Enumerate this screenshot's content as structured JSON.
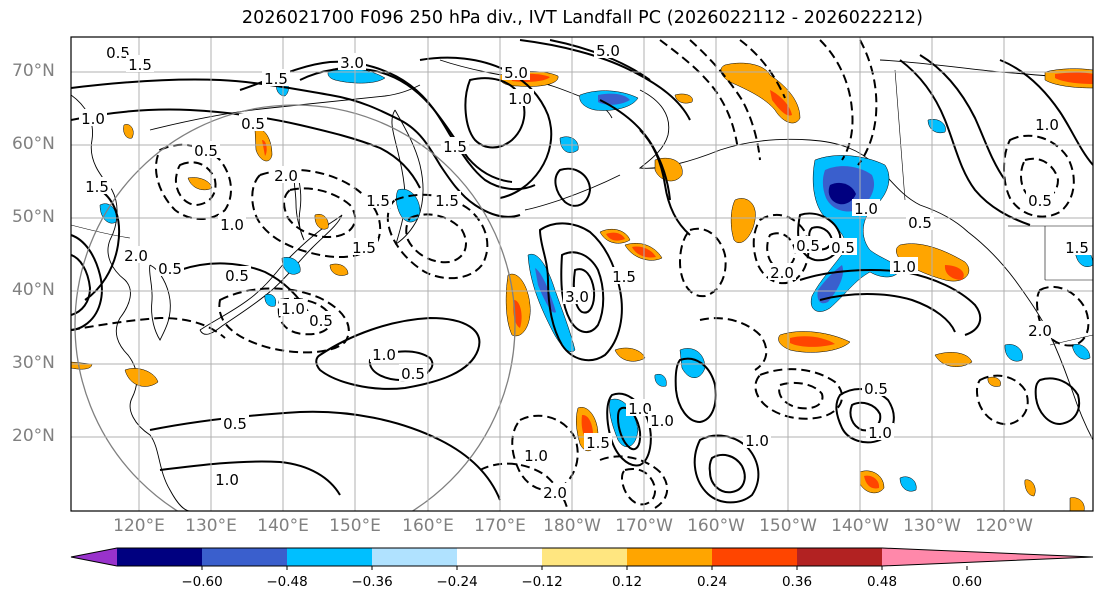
{
  "title": "2026021700 F096 250 hPa div., IVT Landfall PC (2026022112 - 2026022212)",
  "latitude_labels": [
    "70°N",
    "60°N",
    "50°N",
    "40°N",
    "30°N",
    "20°N"
  ],
  "longitude_labels": [
    "120°E",
    "130°E",
    "140°E",
    "150°E",
    "160°E",
    "170°E",
    "180°W",
    "170°W",
    "160°W",
    "150°W",
    "140°W",
    "130°W",
    "120°W"
  ],
  "colorbar": {
    "ticks": [
      "−0.60",
      "−0.48",
      "−0.36",
      "−0.24",
      "−0.12",
      "0.12",
      "0.24",
      "0.36",
      "0.48",
      "0.60"
    ],
    "colors": [
      "#9932cc",
      "#000080",
      "#3a5fcd",
      "#00bfff",
      "#b0e2ff",
      "#ffffff",
      "#ffe680",
      "#ffa500",
      "#ff4500",
      "#b22222",
      "#ff88aa"
    ]
  },
  "contour_labels": [
    "0.5",
    "1.5",
    "3.0",
    "5.0",
    "5.0",
    "1.0",
    "0.5",
    "1.5",
    "1.5",
    "1.5",
    "2.0",
    "0.5",
    "0.5",
    "1.0",
    "1.5",
    "3.0",
    "1.5",
    "2.0",
    "1.0",
    "0.5",
    "1.5",
    "1.0",
    "0.5",
    "2.0",
    "1.0",
    "0.5",
    "0.5",
    "1.0",
    "1.5",
    "0.5",
    "1.0",
    "2.0",
    "1.0",
    "1.5",
    "1.0",
    "1.0",
    "1.0",
    "1.0",
    "0.5",
    "1.0",
    "0.5",
    "1.5",
    "2.0",
    "0.5",
    "1.0",
    "0.5"
  ]
}
